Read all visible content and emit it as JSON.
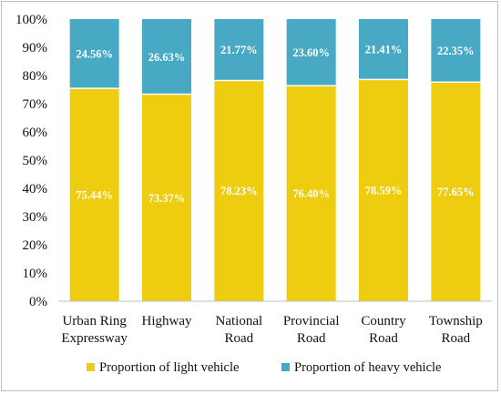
{
  "chart_data": {
    "type": "bar",
    "stacked": true,
    "categories": [
      [
        "Urban Ring",
        "Expressway"
      ],
      [
        "Highway"
      ],
      [
        "National",
        "Road"
      ],
      [
        "Provincial",
        "Road"
      ],
      [
        "Country",
        "Road"
      ],
      [
        "Township",
        "Road"
      ]
    ],
    "series": [
      {
        "name": "Proportion of light vehicle",
        "color": "#EECC10",
        "values": [
          75.44,
          73.37,
          78.23,
          76.4,
          78.59,
          77.65
        ],
        "labels": [
          "75.44%",
          "73.37%",
          "78.23%",
          "76.40%",
          "78.59%",
          "77.65%"
        ]
      },
      {
        "name": "Proportion of heavy vehicle",
        "color": "#47A9C4",
        "values": [
          24.56,
          26.63,
          21.77,
          23.6,
          21.41,
          22.35
        ],
        "labels": [
          "24.56%",
          "26.63%",
          "21.77%",
          "23.60%",
          "21.41%",
          "22.35%"
        ]
      }
    ],
    "ylim": [
      0,
      100
    ],
    "yticks": [
      "0%",
      "10%",
      "20%",
      "30%",
      "40%",
      "50%",
      "60%",
      "70%",
      "80%",
      "90%",
      "100%"
    ],
    "grid": false,
    "legend": "bottom"
  }
}
